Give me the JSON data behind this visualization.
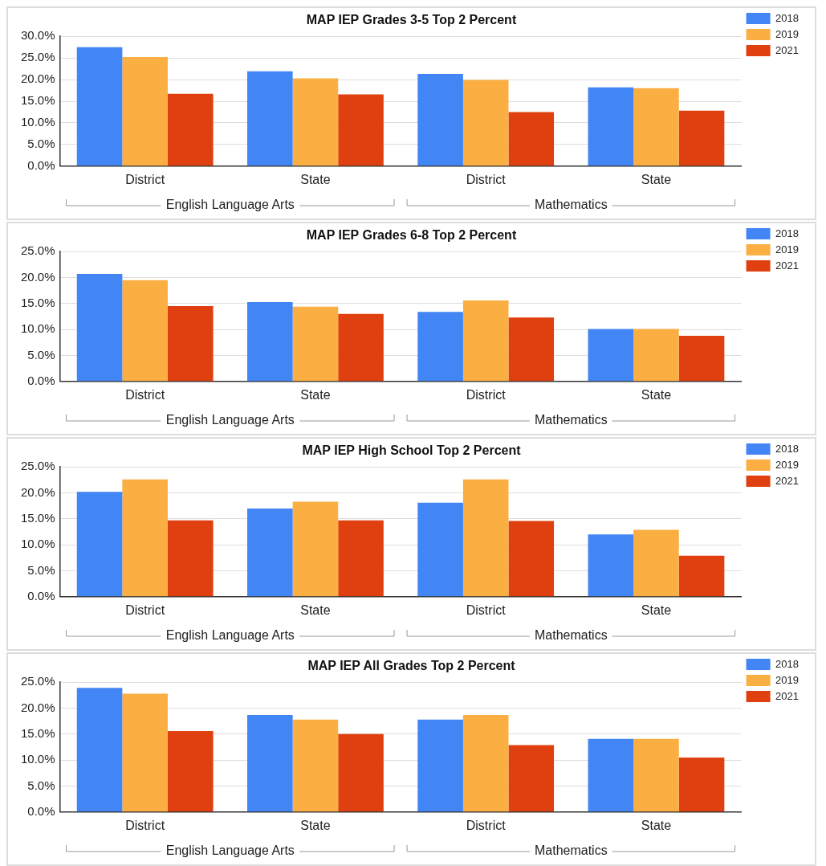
{
  "chart_data": [
    {
      "type": "bar",
      "title": "MAP IEP Grades 3-5 Top 2 Percent",
      "categories": [
        "District",
        "State",
        "District",
        "State"
      ],
      "annotations": [
        "English Language Arts",
        "Mathematics"
      ],
      "ylim": [
        0,
        30
      ],
      "yticks": [
        {
          "value": 0,
          "label": "0.0%"
        },
        {
          "value": 5,
          "label": "5.0%"
        },
        {
          "value": 10,
          "label": "10.0%"
        },
        {
          "value": 15,
          "label": "15.0%"
        },
        {
          "value": 20,
          "label": "20.0%"
        },
        {
          "value": 25,
          "label": "25.0%"
        },
        {
          "value": 30,
          "label": "30.0%"
        }
      ],
      "grid": "y",
      "legend": "top right",
      "series": [
        {
          "name": "2018",
          "color": "#4285f4",
          "values": [
            27.5,
            21.9,
            21.3,
            18.2
          ]
        },
        {
          "name": "2019",
          "color": "#fbae42",
          "values": [
            25.2,
            20.3,
            19.9,
            18.0
          ]
        },
        {
          "name": "2021",
          "color": "#e0400f",
          "values": [
            16.7,
            16.6,
            12.5,
            12.8
          ]
        }
      ]
    },
    {
      "type": "bar",
      "title": "MAP IEP Grades 6-8 Top 2 Percent",
      "categories": [
        "District",
        "State",
        "District",
        "State"
      ],
      "annotations": [
        "English Language Arts",
        "Mathematics"
      ],
      "ylim": [
        0,
        25
      ],
      "yticks": [
        {
          "value": 0,
          "label": "0.0%"
        },
        {
          "value": 5,
          "label": "5.0%"
        },
        {
          "value": 10,
          "label": "10.0%"
        },
        {
          "value": 15,
          "label": "15.0%"
        },
        {
          "value": 20,
          "label": "20.0%"
        },
        {
          "value": 25,
          "label": "25.0%"
        }
      ],
      "grid": "y",
      "legend": "top right",
      "series": [
        {
          "name": "2018",
          "color": "#4285f4",
          "values": [
            20.7,
            15.3,
            13.4,
            10.1
          ]
        },
        {
          "name": "2019",
          "color": "#fbae42",
          "values": [
            19.5,
            14.4,
            15.6,
            10.1
          ]
        },
        {
          "name": "2021",
          "color": "#e0400f",
          "values": [
            14.5,
            13.0,
            12.3,
            8.8
          ]
        }
      ]
    },
    {
      "type": "bar",
      "title": "MAP IEP High School Top 2 Percent",
      "categories": [
        "District",
        "State",
        "District",
        "State"
      ],
      "annotations": [
        "English Language Arts",
        "Mathematics"
      ],
      "ylim": [
        0,
        25
      ],
      "yticks": [
        {
          "value": 0,
          "label": "0.0%"
        },
        {
          "value": 5,
          "label": "5.0%"
        },
        {
          "value": 10,
          "label": "10.0%"
        },
        {
          "value": 15,
          "label": "15.0%"
        },
        {
          "value": 20,
          "label": "20.0%"
        },
        {
          "value": 25,
          "label": "25.0%"
        }
      ],
      "grid": "y",
      "legend": "top right",
      "series": [
        {
          "name": "2018",
          "color": "#4285f4",
          "values": [
            20.2,
            17.0,
            18.1,
            12.0
          ]
        },
        {
          "name": "2019",
          "color": "#fbae42",
          "values": [
            22.6,
            18.3,
            22.6,
            12.9
          ]
        },
        {
          "name": "2021",
          "color": "#e0400f",
          "values": [
            14.7,
            14.7,
            14.6,
            7.9
          ]
        }
      ]
    },
    {
      "type": "bar",
      "title": "MAP IEP All Grades Top 2 Percent",
      "categories": [
        "District",
        "State",
        "District",
        "State"
      ],
      "annotations": [
        "English Language Arts",
        "Mathematics"
      ],
      "ylim": [
        0,
        25
      ],
      "yticks": [
        {
          "value": 0,
          "label": "0.0%"
        },
        {
          "value": 5,
          "label": "5.0%"
        },
        {
          "value": 10,
          "label": "10.0%"
        },
        {
          "value": 15,
          "label": "15.0%"
        },
        {
          "value": 20,
          "label": "20.0%"
        },
        {
          "value": 25,
          "label": "25.0%"
        }
      ],
      "grid": "y",
      "legend": "top right",
      "series": [
        {
          "name": "2018",
          "color": "#4285f4",
          "values": [
            23.9,
            18.7,
            17.8,
            14.1
          ]
        },
        {
          "name": "2019",
          "color": "#fbae42",
          "values": [
            22.8,
            17.8,
            18.7,
            14.1
          ]
        },
        {
          "name": "2021",
          "color": "#e0400f",
          "values": [
            15.6,
            15.0,
            12.9,
            10.5
          ]
        }
      ]
    }
  ]
}
